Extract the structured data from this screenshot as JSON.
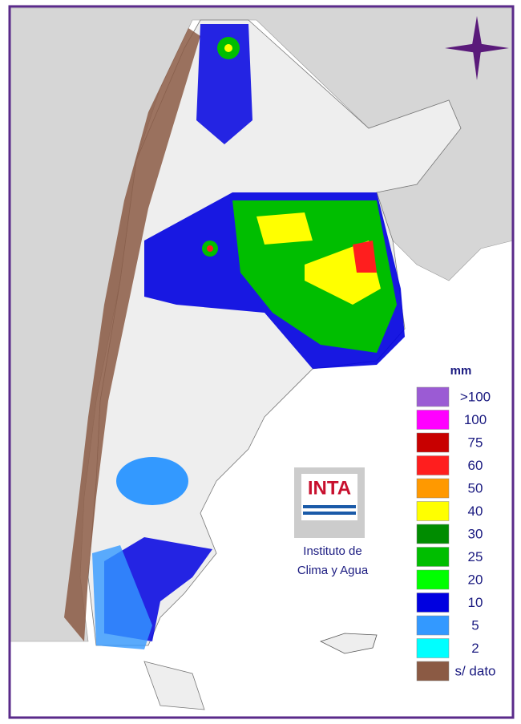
{
  "legend": {
    "title": "mm",
    "items": [
      {
        "label": ">100",
        "color": "#9b5bd4"
      },
      {
        "label": "100",
        "color": "#ff00ff"
      },
      {
        "label": "75",
        "color": "#c80000"
      },
      {
        "label": "60",
        "color": "#ff1e1e"
      },
      {
        "label": "50",
        "color": "#ff9900"
      },
      {
        "label": "40",
        "color": "#ffff00"
      },
      {
        "label": "30",
        "color": "#008c00"
      },
      {
        "label": "25",
        "color": "#00be00"
      },
      {
        "label": "20",
        "color": "#00ff00"
      },
      {
        "label": "10",
        "color": "#0000e0"
      },
      {
        "label": "5",
        "color": "#3399ff"
      },
      {
        "label": "2",
        "color": "#00ffff"
      },
      {
        "label": "s/ dato",
        "color": "#8b5a44"
      }
    ]
  },
  "logo": {
    "name": "INTA",
    "lines": [
      "Instituto de",
      "Clima y Agua"
    ]
  }
}
